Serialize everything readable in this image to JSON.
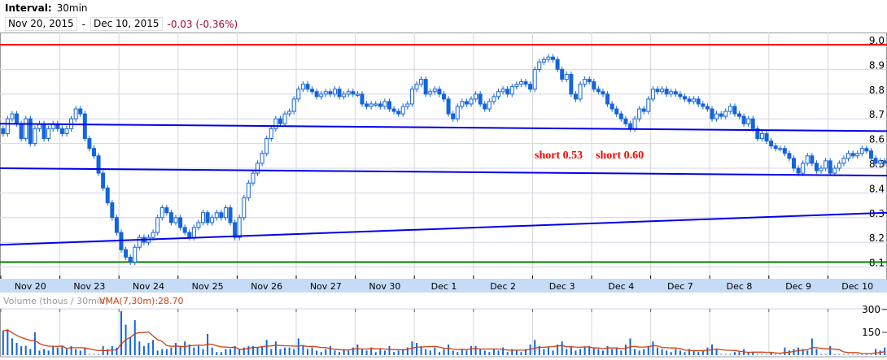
{
  "header": {
    "interval_label": "Interval:",
    "interval_value": "30min",
    "start_date": "Nov 20, 2015",
    "separator": "-",
    "end_date": "Dec 10, 2015",
    "change": "-0.03 (-0.36%)"
  },
  "volume_panel": {
    "label": "Volume (thous / 30min)",
    "vma_label": "VMA(7,30m):28.70",
    "y_ticks": [
      "300",
      "150"
    ]
  },
  "colors": {
    "candle": "#1464dc",
    "resistance": "#ff0000",
    "support": "#008000",
    "trendline": "#0000ee",
    "vma": "#d04010",
    "axis_band": "#c6dbf5"
  },
  "chart_data": {
    "type": "candlestick",
    "interval": "30min",
    "ylim": [
      8.08,
      9.02
    ],
    "y_ticks": [
      "9.0",
      "8.9",
      "8.8",
      "8.7",
      "8.6",
      "8.5",
      "8.4",
      "8.3",
      "8.2",
      "8.1"
    ],
    "grid": true,
    "annotations": [
      "short 0.53",
      "short 0.60"
    ],
    "horizontal_lines": [
      {
        "price": 9.0,
        "color": "red"
      },
      {
        "price": 8.12,
        "color": "green"
      }
    ],
    "trend_lines": [
      {
        "start": 8.68,
        "end": 8.65
      },
      {
        "start": 8.5,
        "end": 8.47
      },
      {
        "start": 8.19,
        "end": 8.32
      }
    ],
    "days": [
      {
        "label": "Nov 20",
        "closes": [
          8.64,
          8.7,
          8.72,
          8.68,
          8.62,
          8.7,
          8.6,
          8.66,
          8.68,
          8.62,
          8.66,
          8.68,
          8.66
        ],
        "volumes": [
          160,
          170,
          110,
          80,
          60,
          60,
          40,
          150,
          30,
          40,
          30,
          60,
          50
        ]
      },
      {
        "label": "Nov 23",
        "closes": [
          8.64,
          8.66,
          8.7,
          8.74,
          8.72,
          8.62,
          8.58,
          8.55,
          8.48,
          8.42,
          8.36,
          8.3,
          8.24
        ],
        "volumes": [
          60,
          40,
          60,
          40,
          30,
          50,
          10,
          10,
          10,
          60,
          40,
          60,
          50
        ]
      },
      {
        "label": "Nov 24",
        "closes": [
          8.17,
          8.14,
          8.12,
          8.18,
          8.22,
          8.2,
          8.22,
          8.24,
          8.3,
          8.34,
          8.32,
          8.28,
          8.3
        ],
        "volumes": [
          290,
          200,
          120,
          230,
          90,
          60,
          80,
          100,
          30,
          40,
          40,
          50,
          80
        ]
      },
      {
        "label": "Nov 25",
        "closes": [
          8.26,
          8.24,
          8.22,
          8.26,
          8.28,
          8.32,
          8.28,
          8.3,
          8.32,
          8.3,
          8.34,
          8.28,
          8.22
        ],
        "volumes": [
          60,
          90,
          70,
          50,
          60,
          40,
          140,
          50,
          20,
          20,
          40,
          40,
          60
        ]
      },
      {
        "label": "Nov 26",
        "closes": [
          8.3,
          8.38,
          8.44,
          8.48,
          8.52,
          8.56,
          8.62,
          8.66,
          8.7,
          8.68,
          8.72,
          8.73,
          8.78
        ],
        "volumes": [
          40,
          50,
          60,
          60,
          50,
          60,
          100,
          40,
          90,
          40,
          50,
          50,
          40
        ]
      },
      {
        "label": "Nov 27",
        "closes": [
          8.82,
          8.84,
          8.82,
          8.81,
          8.79,
          8.8,
          8.81,
          8.8,
          8.82,
          8.79,
          8.8,
          8.81,
          8.8
        ],
        "volumes": [
          110,
          60,
          40,
          50,
          30,
          20,
          40,
          60,
          30,
          20,
          40,
          30,
          50
        ]
      },
      {
        "label": "Nov 30",
        "closes": [
          8.8,
          8.76,
          8.75,
          8.76,
          8.76,
          8.75,
          8.77,
          8.74,
          8.73,
          8.72,
          8.75,
          8.76,
          8.82
        ],
        "volumes": [
          70,
          40,
          30,
          50,
          20,
          40,
          30,
          60,
          20,
          30,
          40,
          50,
          90
        ]
      },
      {
        "label": "Dec 1",
        "closes": [
          8.84,
          8.86,
          8.8,
          8.81,
          8.82,
          8.8,
          8.78,
          8.72,
          8.7,
          8.75,
          8.77,
          8.76,
          8.78
        ],
        "volumes": [
          80,
          60,
          40,
          30,
          50,
          20,
          40,
          70,
          30,
          20,
          40,
          30,
          60
        ]
      },
      {
        "label": "Dec 2",
        "closes": [
          8.8,
          8.76,
          8.74,
          8.77,
          8.79,
          8.81,
          8.82,
          8.8,
          8.83,
          8.84,
          8.85,
          8.84,
          8.82
        ],
        "volumes": [
          60,
          40,
          30,
          20,
          40,
          30,
          50,
          20,
          40,
          30,
          20,
          40,
          70
        ]
      },
      {
        "label": "Dec 3",
        "closes": [
          8.9,
          8.93,
          8.94,
          8.95,
          8.94,
          8.9,
          8.86,
          8.88,
          8.8,
          8.78,
          8.84,
          8.86,
          8.85
        ],
        "volumes": [
          100,
          60,
          40,
          50,
          30,
          70,
          90,
          40,
          60,
          30,
          40,
          50,
          60
        ]
      },
      {
        "label": "Dec 4",
        "closes": [
          8.82,
          8.81,
          8.8,
          8.76,
          8.74,
          8.72,
          8.7,
          8.68,
          8.66,
          8.7,
          8.74,
          8.73,
          8.78
        ],
        "volumes": [
          50,
          40,
          30,
          60,
          40,
          50,
          30,
          70,
          110,
          40,
          30,
          40,
          60
        ]
      },
      {
        "label": "Dec 7",
        "closes": [
          8.82,
          8.81,
          8.82,
          8.8,
          8.81,
          8.8,
          8.79,
          8.78,
          8.77,
          8.78,
          8.76,
          8.75,
          8.74
        ],
        "volumes": [
          90,
          50,
          40,
          30,
          20,
          40,
          30,
          20,
          40,
          30,
          20,
          30,
          50
        ]
      },
      {
        "label": "Dec 8",
        "closes": [
          8.7,
          8.72,
          8.71,
          8.73,
          8.75,
          8.72,
          8.71,
          8.68,
          8.7,
          8.66,
          8.62,
          8.64,
          8.61
        ],
        "volumes": [
          70,
          40,
          10,
          10,
          10,
          20,
          20,
          40,
          20,
          20,
          10,
          10,
          10
        ]
      },
      {
        "label": "Dec 9",
        "closes": [
          8.59,
          8.58,
          8.58,
          8.56,
          8.54,
          8.5,
          8.48,
          8.52,
          8.55,
          8.52,
          8.49,
          8.5,
          8.53
        ],
        "volumes": [
          20,
          10,
          10,
          50,
          30,
          40,
          50,
          40,
          30,
          110,
          40,
          10,
          10
        ]
      },
      {
        "label": "Dec 10",
        "closes": [
          8.48,
          8.5,
          8.52,
          8.54,
          8.56,
          8.55,
          8.56,
          8.58,
          8.57,
          8.54,
          8.52,
          8.53,
          8.52
        ],
        "volumes": [
          60,
          10,
          10,
          10,
          10,
          10,
          10,
          10,
          10,
          10,
          40,
          30,
          50
        ]
      }
    ]
  }
}
